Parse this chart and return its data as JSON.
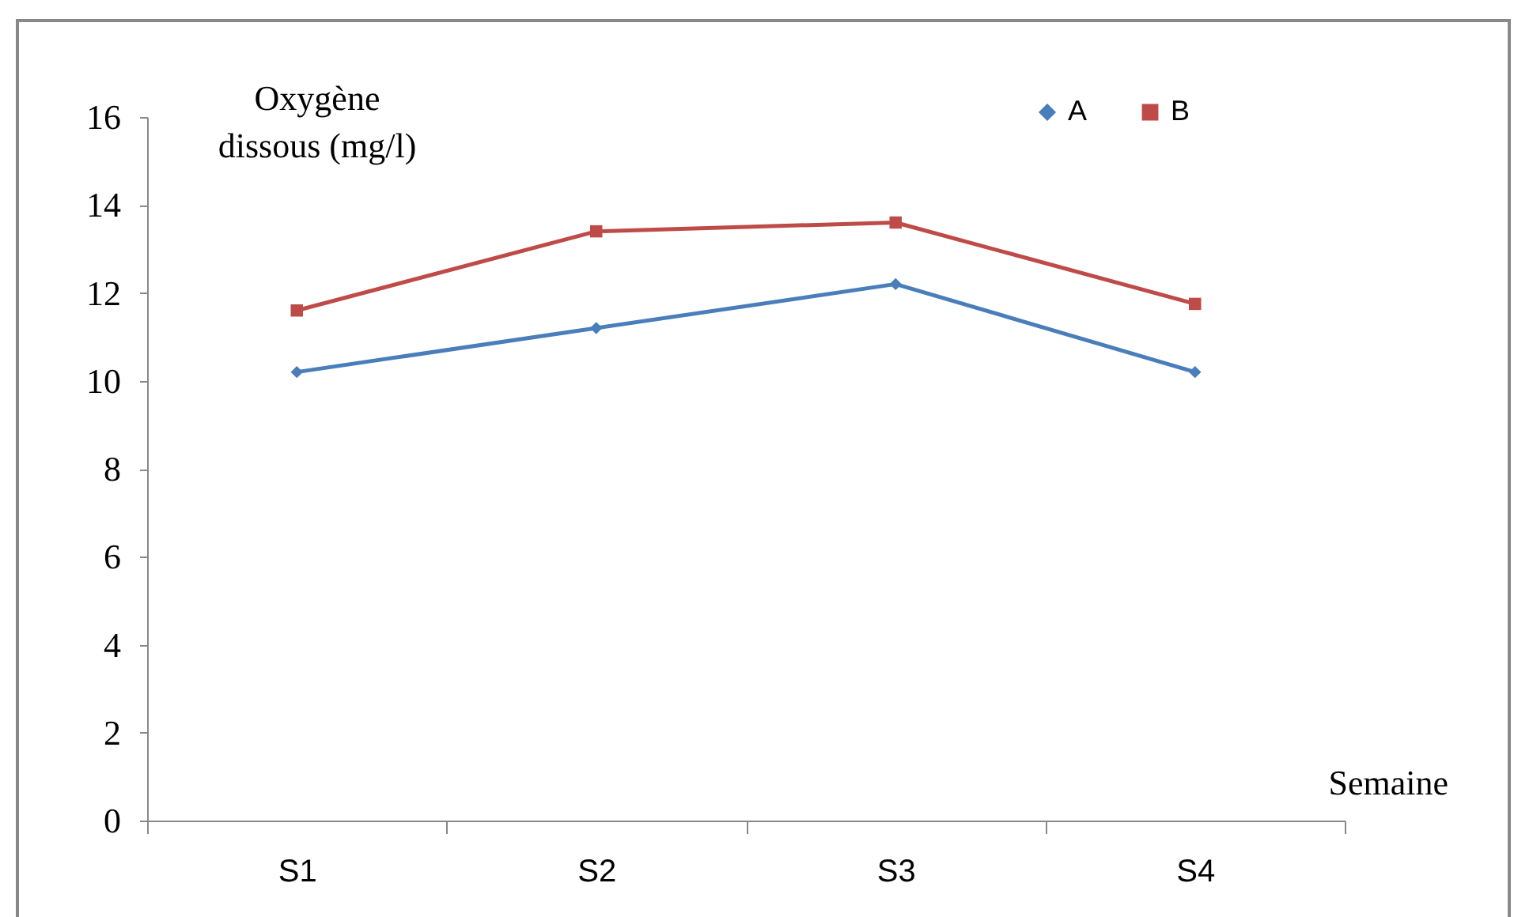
{
  "chart_data": {
    "type": "line",
    "xlabel": "Semaine",
    "ylabel": "Oxygène dissous (mg/l)",
    "categories": [
      "S1",
      "S2",
      "S3",
      "S4"
    ],
    "series": [
      {
        "name": "A",
        "color": "#4a7ebb",
        "marker": "diamond",
        "values": [
          10.2,
          11.2,
          12.2,
          10.2
        ]
      },
      {
        "name": "B",
        "color": "#be4b48",
        "marker": "square",
        "values": [
          11.6,
          13.4,
          13.6,
          11.75
        ]
      }
    ],
    "ylim": [
      0,
      16
    ],
    "yticks": [
      0,
      2,
      4,
      6,
      8,
      10,
      12,
      14,
      16
    ],
    "grid": false,
    "legend": "top right",
    "line_style": "solid"
  }
}
